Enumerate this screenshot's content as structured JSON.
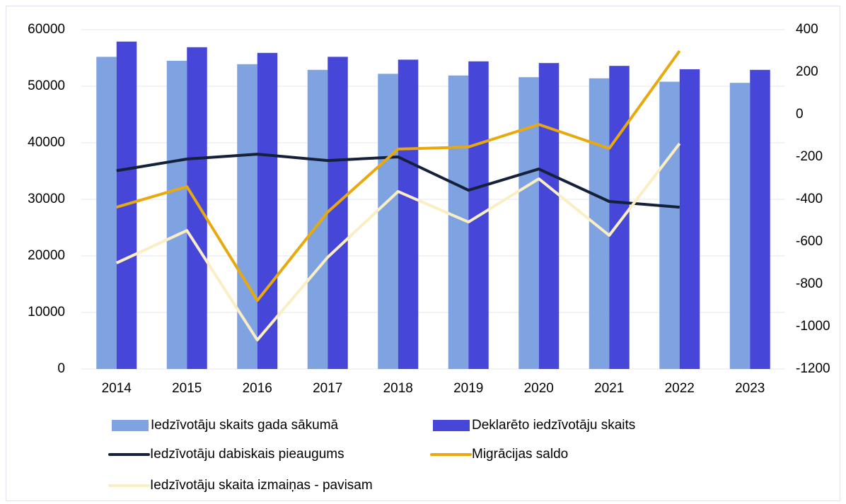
{
  "chart_data": {
    "type": "bar-line",
    "categories": [
      "2014",
      "2015",
      "2016",
      "2017",
      "2018",
      "2019",
      "2020",
      "2021",
      "2022",
      "2023"
    ],
    "series": [
      {
        "name": "Iedzīvotāju skaits gada sākumā",
        "type": "bar",
        "color": "#7fa3e0",
        "values": [
          55200,
          54500,
          53900,
          52900,
          52200,
          51900,
          51600,
          51400,
          50800,
          50600
        ]
      },
      {
        "name": "Deklarēto iedzīvotāju skaits",
        "type": "bar",
        "color": "#4646d9",
        "values": [
          57900,
          56900,
          55900,
          55200,
          54700,
          54400,
          54100,
          53600,
          53000,
          52900
        ]
      },
      {
        "name": "Iedzīvotāju dabiskais pieaugums",
        "type": "line",
        "axis": "y2",
        "color": "#15203a",
        "values": [
          -265,
          -210,
          -187,
          -217,
          -200,
          -357,
          -257,
          -410,
          -437,
          null
        ]
      },
      {
        "name": "Migrācijas saldo",
        "type": "line",
        "axis": "y2",
        "color": "#e8a90e",
        "values": [
          -437,
          -340,
          -877,
          -460,
          -163,
          -153,
          -47,
          -160,
          300,
          null
        ]
      },
      {
        "name": "Iedzīvotāju skaita izmaiņas - pavisam",
        "type": "line",
        "axis": "y2",
        "color": "#fbeec4",
        "values": [
          -700,
          -547,
          -1063,
          -673,
          -363,
          -507,
          -303,
          -570,
          -137,
          null
        ]
      }
    ],
    "ylim": [
      0,
      60000
    ],
    "yticks": [
      0,
      10000,
      20000,
      30000,
      40000,
      50000,
      60000
    ],
    "y2lim": [
      -1200,
      400
    ],
    "y2ticks": [
      -1200,
      -1000,
      -800,
      -600,
      -400,
      -200,
      0,
      200,
      400
    ],
    "grid": true,
    "legend": "bottom"
  }
}
